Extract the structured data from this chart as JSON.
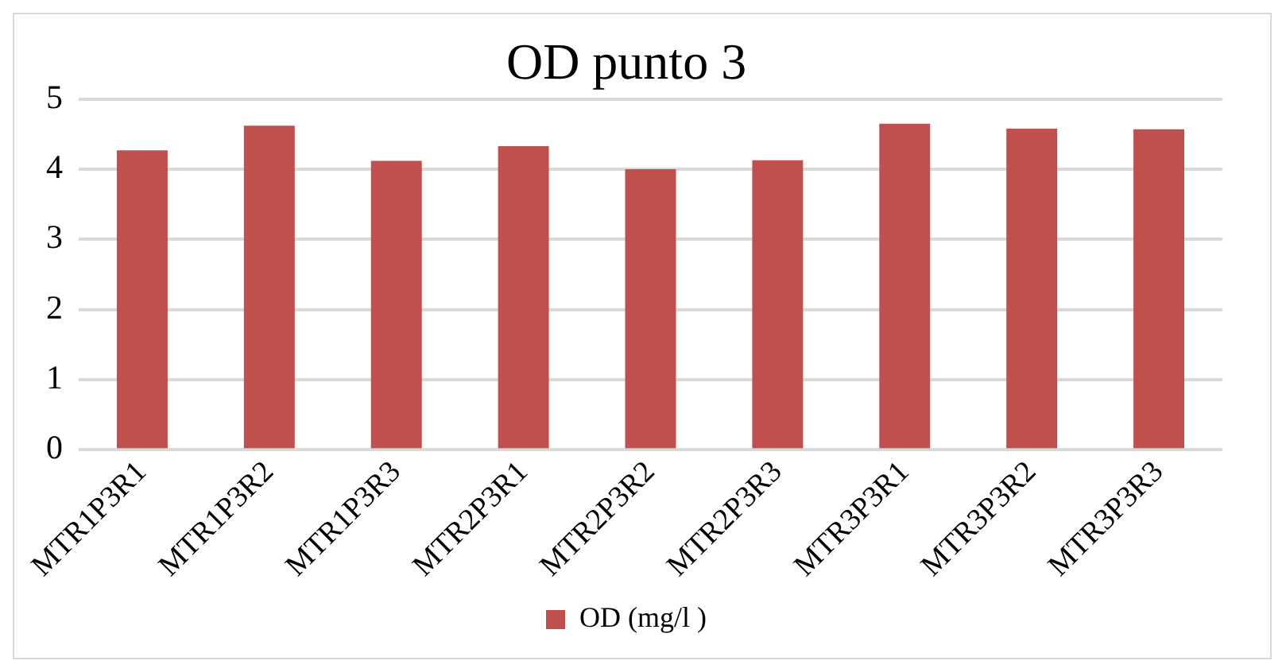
{
  "chart_data": {
    "type": "bar",
    "title": "OD punto 3",
    "categories": [
      "MTR1P3R1",
      "MTR1P3R2",
      "MTR1P3R3",
      "MTR2P3R1",
      "MTR2P3R2",
      "MTR2P3R3",
      "MTR3P3R1",
      "MTR3P3R2",
      "MTR3P3R3"
    ],
    "series": [
      {
        "name": "OD (mg/l )",
        "color": "#c0504d",
        "values": [
          4.27,
          4.62,
          4.12,
          4.33,
          4.0,
          4.13,
          4.65,
          4.58,
          4.57
        ]
      }
    ],
    "ylim": [
      0,
      5
    ],
    "yticks": [
      0,
      1,
      2,
      3,
      4,
      5
    ],
    "grid": "y",
    "legend": "bottom"
  }
}
